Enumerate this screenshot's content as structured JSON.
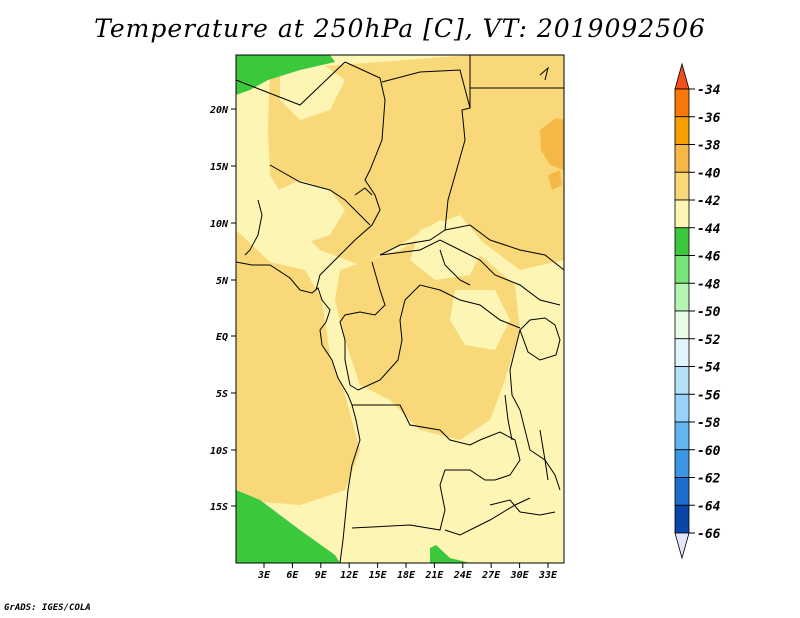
{
  "title": "Temperature at 250hPa [C], VT: 2019092506",
  "credit": "GrADS: IGES/COLA",
  "map": {
    "lat_ticks": [
      "20N",
      "15N",
      "10N",
      "5N",
      "EQ",
      "5S",
      "10S",
      "15S"
    ],
    "lon_ticks": [
      "3E",
      "6E",
      "9E",
      "12E",
      "15E",
      "18E",
      "21E",
      "24E",
      "27E",
      "30E",
      "33E"
    ]
  },
  "colorbar": {
    "labels": [
      "-34",
      "-36",
      "-38",
      "-40",
      "-42",
      "-44",
      "-46",
      "-48",
      "-50",
      "-52",
      "-54",
      "-56",
      "-58",
      "-60",
      "-62",
      "-64",
      "-66"
    ],
    "colors": [
      "#f0501e",
      "#fa780a",
      "#f5a000",
      "#f5b846",
      "#f8d878",
      "#fcf5b4",
      "#3cc83c",
      "#78e478",
      "#b4f5b4",
      "#e8fce8",
      "#e0f4fc",
      "#b4e0fa",
      "#96d2fa",
      "#64b4f0",
      "#3c96e6",
      "#1e6ed2",
      "#0a46aa",
      "#08087a",
      "#e6e6fa"
    ],
    "top_arrow_color": "#f0501e",
    "bottom_arrow_color": "#e6e6fa"
  },
  "field_colors": {
    "light": "#fcf5b4",
    "mid": "#f8d878",
    "warm": "#f5b846",
    "cold": "#3cc83c"
  }
}
